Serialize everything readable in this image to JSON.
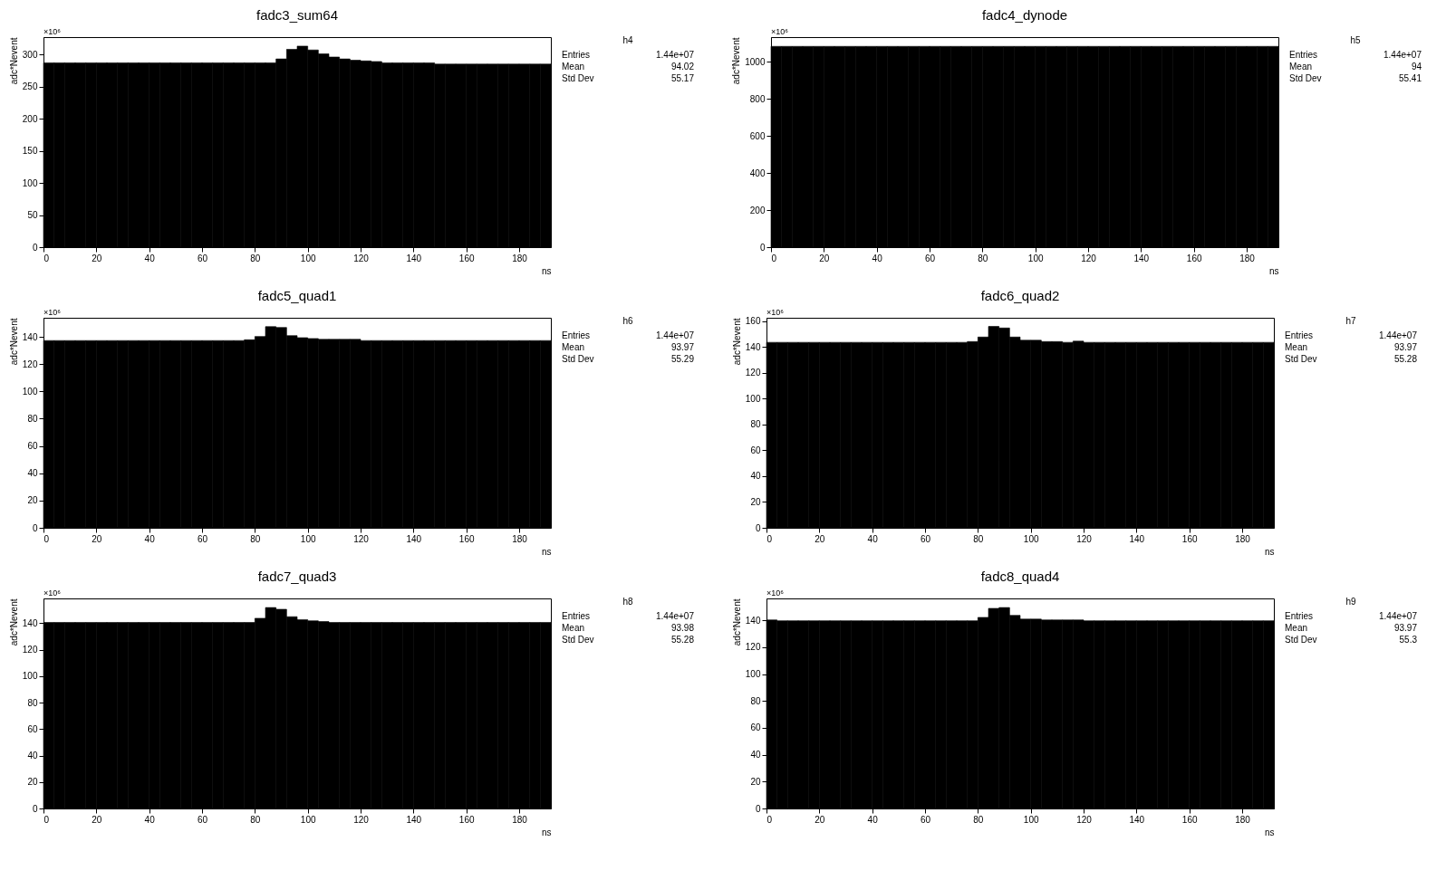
{
  "chart_data": [
    {
      "type": "histogram",
      "title": "fadc3_sum64",
      "xlabel": "ns",
      "ylabel": "adc*Nevent",
      "color": "#000000",
      "xlim": [
        0,
        192
      ],
      "xticks": [
        0,
        20,
        40,
        60,
        80,
        100,
        120,
        140,
        160,
        180
      ],
      "ylim": [
        0,
        327
      ],
      "yticks": [
        0,
        50,
        100,
        150,
        200,
        250,
        300
      ],
      "bins": [
        0,
        4,
        8,
        12,
        16,
        20,
        24,
        28,
        32,
        36,
        40,
        44,
        48,
        52,
        56,
        60,
        64,
        68,
        72,
        76,
        80,
        84,
        88,
        92,
        96,
        100,
        104,
        108,
        112,
        116,
        120,
        124,
        128,
        132,
        136,
        140,
        144,
        148,
        152,
        156,
        160,
        164,
        168,
        172,
        176,
        180,
        184,
        188,
        192
      ],
      "values": [
        287,
        287,
        287,
        287,
        287,
        287,
        287,
        287,
        287,
        287,
        287,
        287,
        287,
        287,
        287,
        287,
        287,
        287,
        287,
        287,
        287,
        287,
        293,
        308,
        313,
        307,
        301,
        296,
        293,
        291,
        290,
        289,
        287,
        287,
        287,
        287,
        287,
        285,
        285,
        285,
        285,
        285,
        285,
        285,
        285,
        285,
        285,
        285
      ],
      "annotations": [
        "×10⁶",
        "h4",
        "Entries",
        "1.44e+07",
        "Mean",
        "94.02",
        "Std Dev",
        "55.17"
      ]
    },
    {
      "type": "histogram",
      "title": "fadc4_dynode",
      "xlabel": "ns",
      "ylabel": "adc*Nevent",
      "color": "#000000",
      "xlim": [
        0,
        192
      ],
      "xticks": [
        0,
        20,
        40,
        60,
        80,
        100,
        120,
        140,
        160,
        180
      ],
      "ylim": [
        0,
        1134
      ],
      "yticks": [
        0,
        200,
        400,
        600,
        800,
        1000
      ],
      "bins": [
        0,
        4,
        8,
        12,
        16,
        20,
        24,
        28,
        32,
        36,
        40,
        44,
        48,
        52,
        56,
        60,
        64,
        68,
        72,
        76,
        80,
        84,
        88,
        92,
        96,
        100,
        104,
        108,
        112,
        116,
        120,
        124,
        128,
        132,
        136,
        140,
        144,
        148,
        152,
        156,
        160,
        164,
        168,
        172,
        176,
        180,
        184,
        188,
        192
      ],
      "values": [
        1084,
        1084,
        1084,
        1084,
        1084,
        1084,
        1084,
        1084,
        1084,
        1084,
        1084,
        1084,
        1084,
        1084,
        1084,
        1084,
        1084,
        1084,
        1084,
        1084,
        1084,
        1084,
        1084,
        1084,
        1084,
        1084,
        1084,
        1084,
        1084,
        1084,
        1084,
        1084,
        1084,
        1084,
        1084,
        1084,
        1084,
        1084,
        1084,
        1084,
        1084,
        1084,
        1084,
        1084,
        1084,
        1084,
        1084,
        1084
      ],
      "annotations": [
        "×10⁶",
        "h5",
        "Entries",
        "1.44e+07",
        "Mean",
        "94",
        "Std Dev",
        "55.41"
      ]
    },
    {
      "type": "histogram",
      "title": "fadc5_quad1",
      "xlabel": "ns",
      "ylabel": "adc*Nevent",
      "color": "#000000",
      "xlim": [
        0,
        192
      ],
      "xticks": [
        0,
        20,
        40,
        60,
        80,
        100,
        120,
        140,
        160,
        180
      ],
      "ylim": [
        0,
        154
      ],
      "yticks": [
        0,
        20,
        40,
        60,
        80,
        100,
        120,
        140
      ],
      "bins": [
        0,
        4,
        8,
        12,
        16,
        20,
        24,
        28,
        32,
        36,
        40,
        44,
        48,
        52,
        56,
        60,
        64,
        68,
        72,
        76,
        80,
        84,
        88,
        92,
        96,
        100,
        104,
        108,
        112,
        116,
        120,
        124,
        128,
        132,
        136,
        140,
        144,
        148,
        152,
        156,
        160,
        164,
        168,
        172,
        176,
        180,
        184,
        188,
        192
      ],
      "values": [
        137.3,
        137.3,
        137.3,
        137.3,
        137.3,
        137.3,
        137.3,
        137.3,
        137.3,
        137.3,
        137.3,
        137.3,
        137.3,
        137.3,
        137.3,
        137.3,
        137.3,
        137.3,
        137.3,
        137.9,
        140.3,
        147.5,
        146.9,
        140.9,
        139.4,
        138.8,
        138.2,
        138.2,
        138.2,
        138.2,
        137.3,
        137.3,
        137.3,
        137.3,
        137.3,
        137.3,
        137.3,
        137.3,
        137.3,
        137.3,
        137.3,
        137.3,
        137.3,
        137.3,
        137.3,
        137.3,
        137.3,
        137.3
      ],
      "annotations": [
        "×10⁶",
        "h6",
        "Entries",
        "1.44e+07",
        "Mean",
        "93.97",
        "Std Dev",
        "55.29"
      ]
    },
    {
      "type": "histogram",
      "title": "fadc6_quad2",
      "xlabel": "ns",
      "ylabel": "adc*Nevent",
      "color": "#000000",
      "xlim": [
        0,
        192
      ],
      "xticks": [
        0,
        20,
        40,
        60,
        80,
        100,
        120,
        140,
        160,
        180
      ],
      "ylim": [
        0,
        162.5
      ],
      "yticks": [
        0,
        20,
        40,
        60,
        80,
        100,
        120,
        140,
        160
      ],
      "bins": [
        0,
        4,
        8,
        12,
        16,
        20,
        24,
        28,
        32,
        36,
        40,
        44,
        48,
        52,
        56,
        60,
        64,
        68,
        72,
        76,
        80,
        84,
        88,
        92,
        96,
        100,
        104,
        108,
        112,
        116,
        120,
        124,
        128,
        132,
        136,
        140,
        144,
        148,
        152,
        156,
        160,
        164,
        168,
        172,
        176,
        180,
        184,
        188,
        192
      ],
      "values": [
        143.5,
        143.5,
        143.5,
        143.5,
        143.5,
        143.5,
        143.5,
        143.5,
        143.5,
        143.5,
        143.5,
        143.5,
        143.5,
        143.5,
        143.5,
        143.5,
        143.5,
        143.5,
        143.5,
        144.1,
        147.6,
        155.8,
        154.6,
        147.6,
        145.1,
        145.1,
        144.1,
        144.1,
        143.5,
        144.4,
        143.5,
        143.5,
        143.5,
        143.5,
        143.5,
        143.5,
        143.5,
        143.5,
        143.5,
        143.5,
        143.5,
        143.5,
        143.5,
        143.5,
        143.5,
        143.5,
        143.5,
        143.5
      ],
      "annotations": [
        "×10⁶",
        "h7",
        "Entries",
        "1.44e+07",
        "Mean",
        "93.97",
        "Std Dev",
        "55.28"
      ]
    },
    {
      "type": "histogram",
      "title": "fadc7_quad3",
      "xlabel": "ns",
      "ylabel": "adc*Nevent",
      "color": "#000000",
      "xlim": [
        0,
        192
      ],
      "xticks": [
        0,
        20,
        40,
        60,
        80,
        100,
        120,
        140,
        160,
        180
      ],
      "ylim": [
        0,
        158.8
      ],
      "yticks": [
        0,
        20,
        40,
        60,
        80,
        100,
        120,
        140
      ],
      "bins": [
        0,
        4,
        8,
        12,
        16,
        20,
        24,
        28,
        32,
        36,
        40,
        44,
        48,
        52,
        56,
        60,
        64,
        68,
        72,
        76,
        80,
        84,
        88,
        92,
        96,
        100,
        104,
        108,
        112,
        116,
        120,
        124,
        128,
        132,
        136,
        140,
        144,
        148,
        152,
        156,
        160,
        164,
        168,
        172,
        176,
        180,
        184,
        188,
        192
      ],
      "values": [
        140.6,
        140.6,
        140.6,
        140.6,
        140.6,
        140.6,
        140.6,
        140.6,
        140.6,
        140.6,
        140.6,
        140.6,
        140.6,
        140.6,
        140.6,
        140.6,
        140.6,
        140.6,
        140.6,
        140.6,
        143.8,
        151.9,
        150.6,
        145.0,
        142.8,
        141.9,
        141.3,
        140.6,
        140.6,
        140.6,
        140.6,
        140.6,
        140.6,
        140.6,
        140.6,
        140.6,
        140.6,
        140.6,
        140.6,
        140.6,
        140.6,
        140.6,
        140.6,
        140.6,
        140.6,
        140.6,
        140.6,
        140.6
      ],
      "annotations": [
        "×10⁶",
        "h8",
        "Entries",
        "1.44e+07",
        "Mean",
        "93.98",
        "Std Dev",
        "55.28"
      ]
    },
    {
      "type": "histogram",
      "title": "fadc8_quad4",
      "xlabel": "ns",
      "ylabel": "adc*Nevent",
      "color": "#000000",
      "xlim": [
        0,
        192
      ],
      "xticks": [
        0,
        20,
        40,
        60,
        80,
        100,
        120,
        140,
        160,
        180
      ],
      "ylim": [
        0,
        156.3
      ],
      "yticks": [
        0,
        20,
        40,
        60,
        80,
        100,
        120,
        140
      ],
      "bins": [
        0,
        4,
        8,
        12,
        16,
        20,
        24,
        28,
        32,
        36,
        40,
        44,
        48,
        52,
        56,
        60,
        64,
        68,
        72,
        76,
        80,
        84,
        88,
        92,
        96,
        100,
        104,
        108,
        112,
        116,
        120,
        124,
        128,
        132,
        136,
        140,
        144,
        148,
        152,
        156,
        160,
        164,
        168,
        172,
        176,
        180,
        184,
        188,
        192
      ],
      "values": [
        140.3,
        139.7,
        139.7,
        139.7,
        139.7,
        139.7,
        139.7,
        139.7,
        139.7,
        139.7,
        139.7,
        139.7,
        139.7,
        139.7,
        139.7,
        139.7,
        139.7,
        139.7,
        139.7,
        139.7,
        142.2,
        148.9,
        149.5,
        143.7,
        140.9,
        140.9,
        140.3,
        140.3,
        140.3,
        140.3,
        139.7,
        139.7,
        139.7,
        139.7,
        139.7,
        139.7,
        139.7,
        139.7,
        139.7,
        139.7,
        139.7,
        139.7,
        139.7,
        139.7,
        139.7,
        139.7,
        139.7,
        139.7
      ],
      "annotations": [
        "×10⁶",
        "h9",
        "Entries",
        "1.44e+07",
        "Mean",
        "93.97",
        "Std Dev",
        "55.3"
      ]
    }
  ]
}
